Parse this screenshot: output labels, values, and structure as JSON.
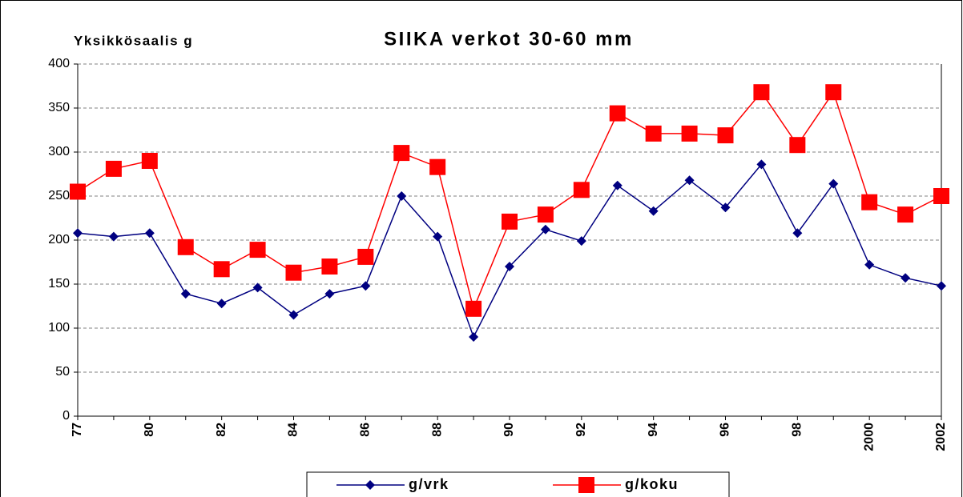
{
  "chart_data": {
    "type": "line",
    "title": "SIIKA verkot 30-60 mm",
    "y_label": "Yksikkösaalis g",
    "categories": [
      "77",
      null,
      "80",
      null,
      "82",
      null,
      "84",
      null,
      "86",
      null,
      "88",
      null,
      "90",
      null,
      "92",
      null,
      "94",
      null,
      "96",
      null,
      "98",
      null,
      "2000",
      null,
      "2002"
    ],
    "series": [
      {
        "name": "g/vrk",
        "color": "#000080",
        "marker": "diamond",
        "values": [
          208,
          204,
          208,
          139,
          128,
          146,
          115,
          139,
          148,
          250,
          204,
          90,
          170,
          212,
          199,
          262,
          233,
          268,
          237,
          286,
          208,
          264,
          172,
          157,
          148
        ]
      },
      {
        "name": "g/koku",
        "color": "#ff0000",
        "marker": "square",
        "values": [
          255,
          281,
          290,
          192,
          167,
          189,
          163,
          170,
          181,
          299,
          283,
          122,
          221,
          229,
          257,
          344,
          321,
          321,
          319,
          368,
          308,
          368,
          243,
          229,
          250
        ]
      }
    ],
    "ylim": [
      0,
      400
    ],
    "yticks": [
      0,
      50,
      100,
      150,
      200,
      250,
      300,
      350,
      400
    ],
    "grid": true,
    "legend": "bottom"
  }
}
